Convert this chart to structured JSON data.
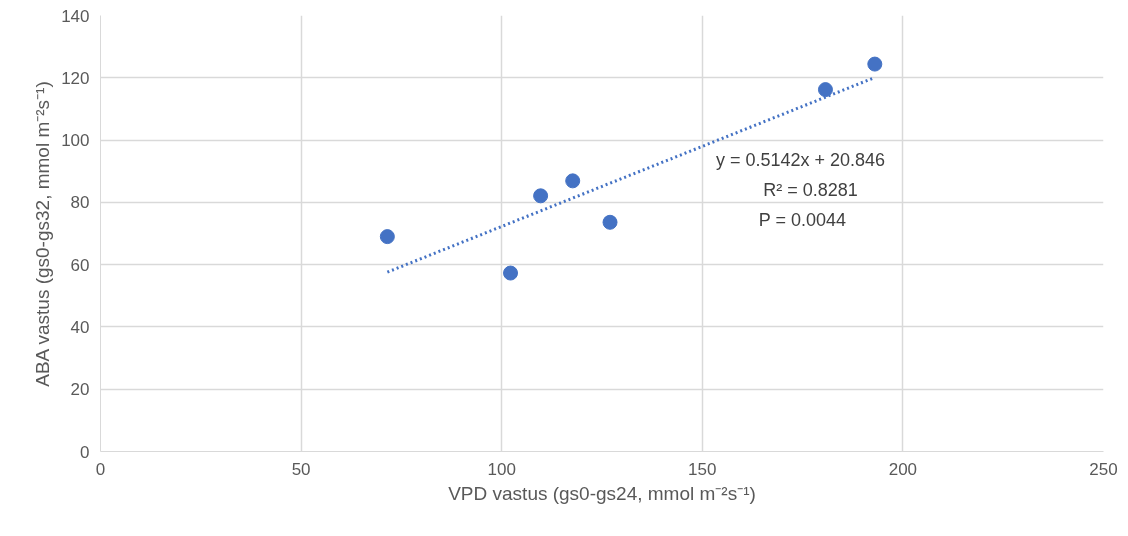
{
  "chart_data": {
    "type": "scatter",
    "xlabel": "VPD vastus (gs0-gs24, mmol m⁻²s⁻¹)",
    "ylabel": "ABA vastus (gs0-gs32, mmol m⁻²s⁻¹)",
    "xlim": [
      0,
      250
    ],
    "xticks": [
      0,
      50,
      100,
      150,
      200,
      250
    ],
    "ylim": [
      0,
      140
    ],
    "yticks": [
      0,
      20,
      40,
      60,
      80,
      100,
      120,
      140
    ],
    "grid": true,
    "series": [
      {
        "color": "#4472c4",
        "x": [
          71.5,
          102.2,
          109.7,
          117.7,
          127.0,
          180.7,
          193.0
        ],
        "values": [
          69.0,
          57.3,
          82.1,
          86.9,
          73.6,
          116.2,
          124.4
        ],
        "marker": "circle"
      },
      {
        "type": "line",
        "color": "#4472c4",
        "line_style": "dotted",
        "x": [
          71.5,
          193.0
        ],
        "values": [
          57.6,
          120.1
        ]
      }
    ],
    "annotations": [
      "y = 0.5142x + 20.846",
      "R² = 0.8281",
      "P = 0.0044"
    ]
  }
}
